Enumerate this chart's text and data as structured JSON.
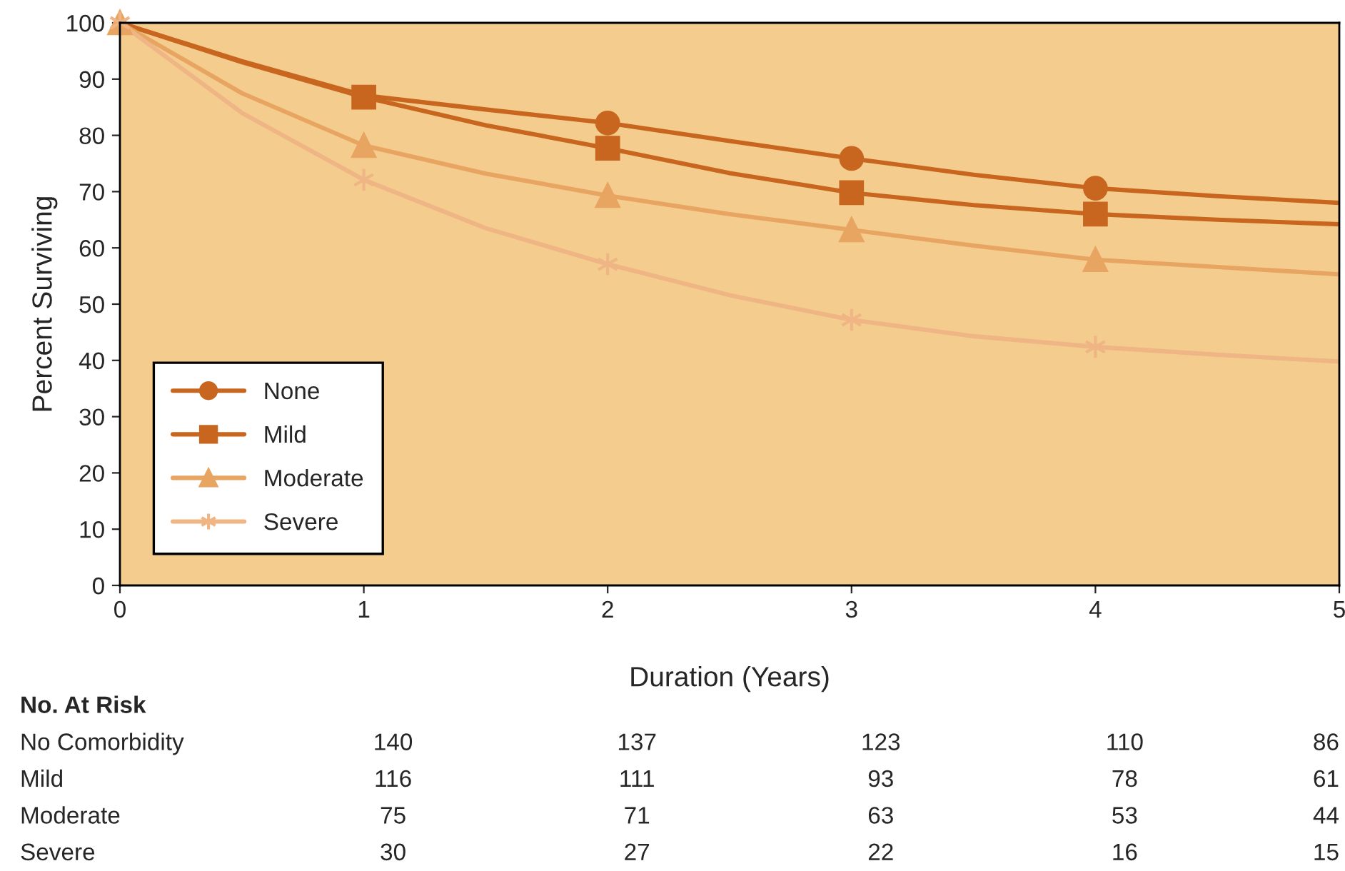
{
  "chart_data": {
    "type": "line",
    "xlabel": "Duration (Years)",
    "ylabel": "Percent Surviving",
    "x": [
      0,
      0.5,
      1,
      1.5,
      2,
      2.5,
      3,
      3.5,
      4,
      4.5,
      5
    ],
    "series": [
      {
        "color": "#c8661f",
        "values": [
          100,
          93.2,
          87.1,
          84.6,
          82.2,
          79.0,
          75.9,
          73.0,
          70.6,
          69.2,
          68.0
        ]
      },
      {
        "color": "#c8661f",
        "values": [
          100,
          93.0,
          86.8,
          81.8,
          77.7,
          73.3,
          69.8,
          67.6,
          66.0,
          65.0,
          64.2
        ]
      },
      {
        "color": "#e8a562",
        "values": [
          100,
          87.5,
          78.2,
          73.2,
          69.3,
          66.0,
          63.2,
          60.4,
          57.9,
          56.6,
          55.3
        ]
      },
      {
        "color": "#efb585",
        "values": [
          100,
          84.0,
          72.1,
          63.5,
          57.1,
          51.6,
          47.2,
          44.3,
          42.4,
          41.0,
          39.8
        ]
      },
      {
        "name": "None",
        "type": "scatter",
        "color": "#c8661f",
        "marker": "circle",
        "x": [
          2,
          3,
          4
        ],
        "values": [
          82.2,
          75.9,
          70.6
        ]
      },
      {
        "name": "Mild",
        "type": "scatter",
        "color": "#c8661f",
        "marker": "square",
        "x": [
          1,
          2,
          3,
          4
        ],
        "values": [
          86.8,
          77.7,
          69.8,
          66.0
        ]
      },
      {
        "name": "Moderate",
        "type": "scatter",
        "color": "#e8a562",
        "marker": "triangle",
        "x": [
          0,
          1,
          2,
          3,
          4
        ],
        "values": [
          100,
          78.2,
          69.3,
          63.2,
          57.9
        ]
      },
      {
        "name": "Severe",
        "type": "scatter",
        "color": "#efb585",
        "marker": "cross",
        "x": [
          0,
          1,
          2,
          3,
          4
        ],
        "values": [
          100,
          72.1,
          57.1,
          47.2,
          42.4
        ]
      }
    ],
    "xlim": [
      0,
      5
    ],
    "xticks": [
      0,
      1,
      2,
      3,
      4,
      5
    ],
    "ylim": [
      0,
      100
    ],
    "yticks": [
      0,
      10,
      20,
      30,
      40,
      50,
      60,
      70,
      80,
      90,
      100
    ],
    "grid": false,
    "legend": "bottom left",
    "line_style": "solid",
    "annotations": [
      "No. At Risk",
      "No Comorbidity",
      "140",
      "137",
      "123",
      "110",
      "86",
      "Mild",
      "116",
      "111",
      "93",
      "78",
      "61",
      "Moderate",
      "75",
      "71",
      "63",
      "53",
      "44",
      "Severe",
      "30",
      "27",
      "22",
      "16",
      "15"
    ]
  }
}
